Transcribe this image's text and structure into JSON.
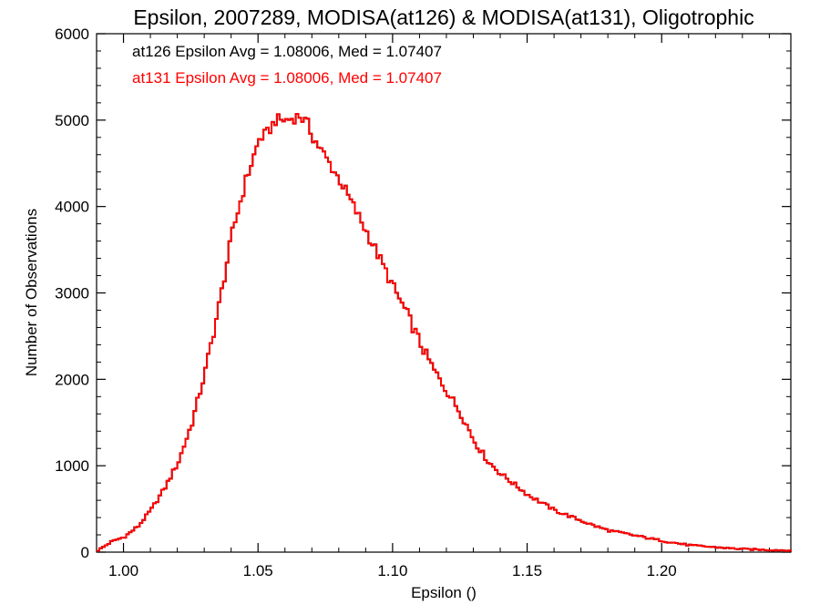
{
  "chart_data": {
    "type": "line",
    "title": "Epsilon, 2007289, MODISA(at126) & MODISA(at131), Oligotrophic",
    "xlabel": "Epsilon ()",
    "ylabel": "Number of Observations",
    "xlim": [
      0.99,
      1.248
    ],
    "ylim": [
      0,
      6000
    ],
    "x_ticks": [
      "1.00",
      "1.05",
      "1.10",
      "1.15",
      "1.20"
    ],
    "y_ticks": [
      "0",
      "1000",
      "2000",
      "3000",
      "4000",
      "5000",
      "6000"
    ],
    "grid": false,
    "annotations": [
      {
        "text": "at126 Epsilon Avg = 1.08006, Med = 1.07407",
        "color": "#000000"
      },
      {
        "text": "at131 Epsilon Avg = 1.08006, Med = 1.07407",
        "color": "#ff0000"
      }
    ],
    "series": [
      {
        "name": "at126",
        "color": "#000000",
        "x": [
          0.99,
          0.995,
          1.0,
          1.005,
          1.01,
          1.015,
          1.02,
          1.025,
          1.03,
          1.035,
          1.04,
          1.045,
          1.05,
          1.053,
          1.056,
          1.06,
          1.065,
          1.068,
          1.07,
          1.075,
          1.08,
          1.085,
          1.09,
          1.095,
          1.1,
          1.105,
          1.11,
          1.115,
          1.12,
          1.125,
          1.13,
          1.135,
          1.14,
          1.145,
          1.15,
          1.155,
          1.16,
          1.165,
          1.17,
          1.175,
          1.18,
          1.19,
          1.2,
          1.21,
          1.22,
          1.23,
          1.24,
          1.248
        ],
        "values": [
          20,
          120,
          180,
          300,
          500,
          750,
          1050,
          1500,
          2100,
          2850,
          3700,
          4300,
          4780,
          4850,
          5000,
          5000,
          5050,
          4950,
          4800,
          4550,
          4300,
          4000,
          3700,
          3380,
          3050,
          2750,
          2400,
          2100,
          1850,
          1600,
          1280,
          1050,
          900,
          780,
          660,
          570,
          480,
          420,
          360,
          300,
          250,
          190,
          130,
          80,
          55,
          35,
          25,
          20
        ]
      },
      {
        "name": "at131",
        "color": "#ff0000",
        "x": [
          0.99,
          0.995,
          1.0,
          1.005,
          1.01,
          1.015,
          1.02,
          1.025,
          1.03,
          1.035,
          1.04,
          1.045,
          1.05,
          1.053,
          1.056,
          1.06,
          1.065,
          1.068,
          1.07,
          1.075,
          1.08,
          1.085,
          1.09,
          1.095,
          1.1,
          1.105,
          1.11,
          1.115,
          1.12,
          1.125,
          1.13,
          1.135,
          1.14,
          1.145,
          1.15,
          1.155,
          1.16,
          1.165,
          1.17,
          1.175,
          1.18,
          1.19,
          1.2,
          1.21,
          1.22,
          1.23,
          1.24,
          1.248
        ],
        "values": [
          20,
          120,
          180,
          300,
          500,
          750,
          1050,
          1500,
          2100,
          2850,
          3700,
          4300,
          4780,
          4850,
          5000,
          5000,
          5050,
          4950,
          4800,
          4550,
          4300,
          4000,
          3700,
          3380,
          3050,
          2750,
          2400,
          2100,
          1850,
          1600,
          1280,
          1050,
          900,
          780,
          660,
          570,
          480,
          420,
          360,
          300,
          250,
          190,
          130,
          80,
          55,
          35,
          25,
          20
        ]
      }
    ]
  }
}
